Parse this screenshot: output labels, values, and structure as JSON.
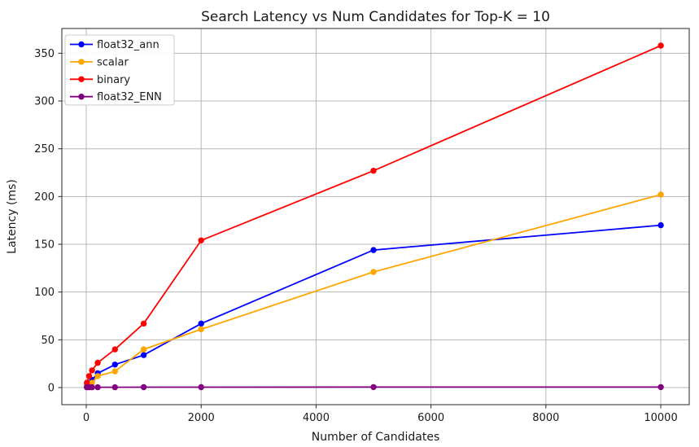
{
  "chart_data": {
    "type": "line",
    "title": "Search Latency vs Num Candidates for Top-K = 10",
    "xlabel": "Number of Candidates",
    "ylabel": "Latency (ms)",
    "x": [
      10,
      50,
      100,
      200,
      500,
      1000,
      2000,
      5000,
      10000
    ],
    "series": [
      {
        "name": "float32_ann",
        "color": "#0000ff",
        "values": [
          2,
          4,
          8,
          15,
          24,
          34,
          67,
          144,
          170
        ]
      },
      {
        "name": "scalar",
        "color": "#ffa500",
        "values": [
          2,
          3,
          5,
          12,
          17,
          40,
          61,
          121,
          202
        ]
      },
      {
        "name": "binary",
        "color": "#ff0000",
        "values": [
          5,
          12,
          18,
          26,
          40,
          67,
          154,
          227,
          358
        ]
      },
      {
        "name": "float32_ENN",
        "color": "#800080",
        "values": [
          0.3,
          0.3,
          0.3,
          0.3,
          0.3,
          0.4,
          0.4,
          0.5,
          0.5
        ]
      }
    ],
    "xticks": [
      0,
      2000,
      4000,
      6000,
      8000,
      10000
    ],
    "yticks": [
      0,
      50,
      100,
      150,
      200,
      250,
      300,
      350
    ],
    "xlim": [
      -425,
      10495
    ],
    "ylim": [
      -17.9,
      375.9
    ],
    "grid": true,
    "grid_color": "#b8b8b8",
    "spine_color": "#262626",
    "text_color": "#1a1a1a",
    "background": "#ffffff",
    "legend_position": "upper-left",
    "legend_border_color": "#cccccc"
  }
}
